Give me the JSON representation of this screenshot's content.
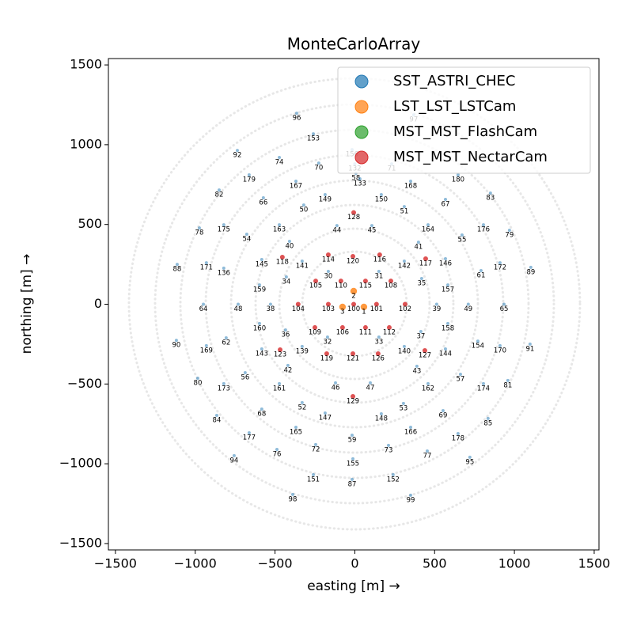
{
  "chart_data": {
    "type": "scatter",
    "title": "MonteCarloArray",
    "x_label": "easting [m] →",
    "y_label": "northing [m] →",
    "xlim": [
      -1544,
      1530
    ],
    "ylim": [
      -1540,
      1540
    ],
    "xticks": [
      {
        "value": -1500,
        "label": "−1500"
      },
      {
        "value": -1000,
        "label": "−1000"
      },
      {
        "value": -500,
        "label": "−500"
      },
      0,
      500,
      1000,
      1500
    ],
    "yticks": [
      {
        "value": -1500,
        "label": "−1500"
      },
      {
        "value": -1000,
        "label": "−1000"
      },
      {
        "value": -500,
        "label": "−500"
      },
      0,
      500,
      1000,
      1500
    ],
    "legend": "upper right",
    "series": [
      {
        "name": "SST_ASTRI_CHEC",
        "color": "#1f77b4",
        "labels": [
          "96",
          "97",
          "153",
          "92",
          "74",
          "70",
          "71",
          "179",
          "167",
          "168",
          "180",
          "82",
          "66",
          "149",
          "150",
          "83",
          "50",
          "51",
          "67",
          "78",
          "175",
          "54",
          "163",
          "44",
          "45",
          "164",
          "176",
          "79",
          "55",
          "40",
          "41",
          "88",
          "171",
          "136",
          "145",
          "141",
          "142",
          "146",
          "172",
          "89",
          "61",
          "34",
          "30",
          "31",
          "35",
          "159",
          "157",
          "64",
          "48",
          "38",
          "39",
          "49",
          "65",
          "160",
          "36",
          "37",
          "158",
          "90",
          "62",
          "169",
          "154",
          "170",
          "91",
          "143",
          "139",
          "140",
          "144",
          "42",
          "43",
          "56",
          "57",
          "80",
          "173",
          "161",
          "46",
          "47",
          "162",
          "174",
          "81",
          "52",
          "53",
          "68",
          "69",
          "84",
          "85",
          "147",
          "148",
          "165",
          "166",
          "177",
          "178",
          "59",
          "72",
          "73",
          "76",
          "77",
          "94",
          "95",
          "155",
          "151",
          "152",
          "87",
          "98",
          "99",
          "156",
          "132",
          "58",
          "133",
          "32",
          "33"
        ],
        "x": [
          -364,
          369,
          -260,
          -736,
          -473,
          -226,
          231,
          -662,
          -369,
          350,
          647,
          -850,
          -573,
          -186,
          166,
          850,
          -320,
          310,
          568,
          -974,
          -821,
          -677,
          -473,
          -112,
          107,
          459,
          806,
          969,
          672,
          -409,
          399,
          -1113,
          -930,
          -821,
          -583,
          -330,
          310,
          568,
          910,
          1103,
          791,
          -429,
          -166,
          151,
          419,
          -597,
          583,
          -949,
          -731,
          -528,
          513,
          711,
          935,
          -597,
          -434,
          414,
          583,
          -1118,
          -806,
          -930,
          771,
          910,
          1098,
          -583,
          -330,
          310,
          568,
          -419,
          389,
          -687,
          662,
          -984,
          -821,
          -473,
          -121,
          97,
          459,
          806,
          959,
          -330,
          305,
          -583,
          553,
          -865,
          835,
          -186,
          166,
          -369,
          350,
          -662,
          647,
          -17,
          -245,
          211,
          -488,
          454,
          -756,
          721,
          -12,
          -260,
          240,
          -17,
          -389,
          350,
          -17,
          0,
          7,
          32,
          -171,
          151
        ],
        "y": [
          1197,
          1187,
          1068,
          964,
          920,
          885,
          880,
          811,
          771,
          771,
          811,
          716,
          667,
          687,
          687,
          697,
          622,
          612,
          657,
          478,
          498,
          439,
          498,
          493,
          493,
          498,
          498,
          464,
          434,
          394,
          389,
          250,
          260,
          226,
          280,
          270,
          270,
          285,
          260,
          231,
          211,
          171,
          206,
          206,
          161,
          121,
          121,
          0,
          0,
          0,
          0,
          0,
          0,
          -121,
          -161,
          -171,
          -121,
          -226,
          -211,
          -260,
          -231,
          -260,
          -250,
          -280,
          -265,
          -265,
          -280,
          -384,
          -389,
          -429,
          -439,
          -464,
          -498,
          -498,
          -493,
          -493,
          -498,
          -498,
          -478,
          -617,
          -622,
          -657,
          -667,
          -697,
          -716,
          -682,
          -687,
          -771,
          -771,
          -806,
          -811,
          -821,
          -880,
          -885,
          -910,
          -920,
          -949,
          -959,
          -969,
          -1068,
          -1068,
          -1098,
          -1192,
          -1197,
          969,
          880,
          821,
          786,
          -206,
          -206
        ]
      },
      {
        "name": "LST_LST_LSTCam",
        "color": "#ff7f0e",
        "labels": [
          "1",
          "2",
          "3"
        ],
        "x": [
          57,
          -7,
          -77
        ],
        "y": [
          -17,
          82,
          -17
        ]
      },
      {
        "name": "MST_MST_FlashCam",
        "color": "#2ca02c",
        "labels": [],
        "x": [],
        "y": []
      },
      {
        "name": "MST_MST_NectarCam",
        "color": "#d62728",
        "labels": [
          "128",
          "118",
          "114",
          "120",
          "116",
          "117",
          "105",
          "110",
          "115",
          "108",
          "104",
          "103",
          "100",
          "101",
          "102",
          "109",
          "106",
          "111",
          "112",
          "123",
          "119",
          "121",
          "126",
          "127",
          "129"
        ],
        "x": [
          -7,
          -454,
          -166,
          -12,
          156,
          444,
          -245,
          -87,
          67,
          226,
          -355,
          -166,
          -7,
          136,
          315,
          -250,
          -77,
          67,
          216,
          -468,
          -176,
          -12,
          146,
          439,
          -12
        ],
        "y": [
          575,
          295,
          310,
          300,
          310,
          285,
          146,
          146,
          146,
          146,
          0,
          0,
          0,
          0,
          0,
          -146,
          -146,
          -146,
          -146,
          -285,
          -310,
          -310,
          -310,
          -290,
          -578
        ]
      }
    ]
  }
}
